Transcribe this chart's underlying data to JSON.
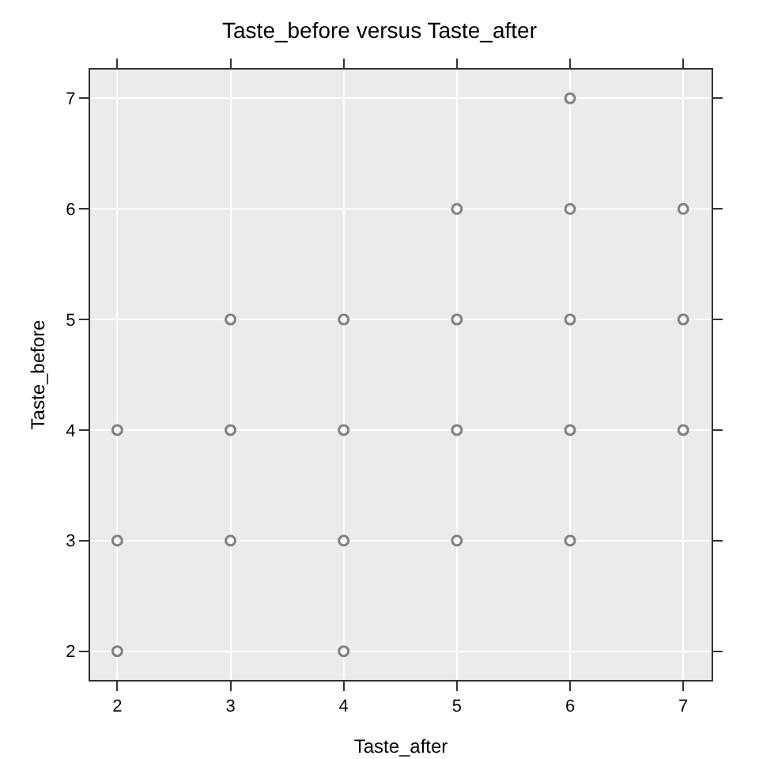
{
  "chart_data": {
    "type": "scatter",
    "title": "Taste_before versus Taste_after",
    "xlabel": "Taste_after",
    "ylabel": "Taste_before",
    "x": [
      2,
      2,
      2,
      3,
      3,
      3,
      4,
      4,
      4,
      4,
      5,
      5,
      5,
      5,
      6,
      6,
      6,
      6,
      6,
      7,
      7,
      7
    ],
    "series": [
      {
        "color": "#808080",
        "values": [
          4,
          3,
          2,
          5,
          4,
          3,
          5,
          4,
          3,
          2,
          6,
          5,
          4,
          3,
          7,
          6,
          5,
          4,
          3,
          6,
          5,
          4
        ]
      }
    ],
    "xlim": [
      1.76,
      7.25
    ],
    "ylim": [
      1.74,
      7.26
    ],
    "xticks": [
      2,
      3,
      4,
      5,
      6,
      7
    ],
    "yticks": [
      2,
      3,
      4,
      5,
      6,
      7
    ],
    "grid": true,
    "marker": "circle"
  }
}
